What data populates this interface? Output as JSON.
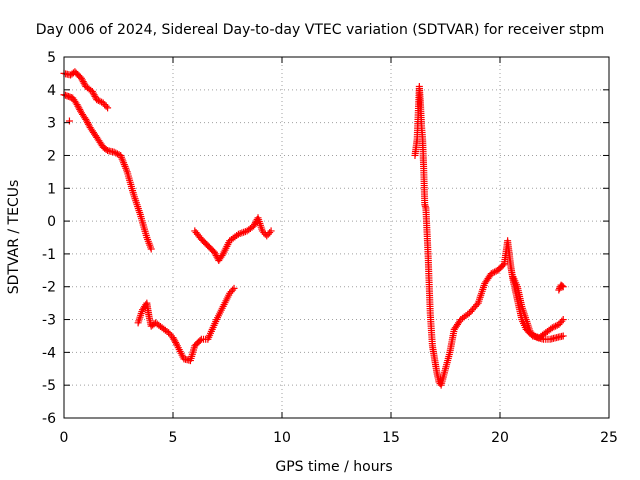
{
  "chart_data": {
    "type": "scatter",
    "title": "Day 006 of 2024, Sidereal Day-to-day VTEC variation (SDTVAR) for receiver stpm",
    "xlabel": "GPS time / hours",
    "ylabel": "SDTVAR / TECUs",
    "xlim": [
      0,
      25
    ],
    "ylim": [
      -6,
      5
    ],
    "xticks": [
      0,
      5,
      10,
      15,
      20,
      25
    ],
    "yticks": [
      -6,
      -5,
      -4,
      -3,
      -2,
      -1,
      0,
      1,
      2,
      3,
      4,
      5
    ],
    "grid": true,
    "marker": "plus",
    "color": "#ff0000",
    "segments": [
      {
        "x": [
          0.0,
          0.3,
          0.5,
          0.8,
          1.0,
          1.3,
          1.5,
          1.8,
          2.0
        ],
        "y": [
          4.5,
          4.45,
          4.55,
          4.35,
          4.1,
          3.95,
          3.7,
          3.6,
          3.45
        ]
      },
      {
        "x": [
          0.0,
          0.2,
          0.4,
          0.6,
          0.8,
          1.0,
          1.2,
          1.5,
          1.8,
          2.0,
          2.3,
          2.6,
          2.9,
          3.2,
          3.5,
          3.8,
          4.0
        ],
        "y": [
          3.85,
          3.8,
          3.75,
          3.55,
          3.3,
          3.1,
          2.85,
          2.55,
          2.25,
          2.15,
          2.1,
          2.0,
          1.5,
          0.8,
          0.2,
          -0.5,
          -0.85
        ]
      },
      {
        "x": [
          0.25
        ],
        "y": [
          3.05
        ]
      },
      {
        "x": [
          3.4,
          3.6,
          3.8,
          3.9,
          4.0,
          4.2,
          4.5,
          4.8,
          5.0,
          5.2,
          5.5,
          5.8,
          6.0,
          6.3,
          6.6,
          7.0,
          7.3,
          7.6,
          7.8
        ],
        "y": [
          -3.1,
          -2.7,
          -2.5,
          -2.9,
          -3.2,
          -3.1,
          -3.25,
          -3.4,
          -3.55,
          -3.8,
          -4.2,
          -4.25,
          -3.8,
          -3.6,
          -3.6,
          -3.0,
          -2.6,
          -2.2,
          -2.05
        ]
      },
      {
        "x": [
          6.0,
          6.3,
          6.6,
          6.9,
          7.1,
          7.3,
          7.6,
          8.0,
          8.4,
          8.7,
          8.9,
          9.1,
          9.3,
          9.5
        ],
        "y": [
          -0.3,
          -0.55,
          -0.75,
          -0.95,
          -1.2,
          -1.0,
          -0.6,
          -0.4,
          -0.3,
          -0.15,
          0.1,
          -0.3,
          -0.45,
          -0.3
        ]
      },
      {
        "x": [
          16.1,
          16.2,
          16.3,
          16.35,
          16.4,
          16.45,
          16.5,
          16.55,
          16.6,
          16.7,
          16.8,
          16.9,
          17.0,
          17.1,
          17.2,
          17.3,
          17.5,
          17.7,
          17.9,
          18.2,
          18.6,
          19.0,
          19.3,
          19.6,
          19.9,
          20.2,
          20.35,
          20.5,
          20.6,
          20.8,
          21.0,
          21.2,
          21.5,
          21.8,
          22.1,
          22.4,
          22.7,
          22.9
        ],
        "y": [
          2.0,
          2.5,
          4.1,
          3.6,
          2.9,
          2.5,
          1.6,
          0.5,
          0.4,
          -1.0,
          -2.8,
          -3.8,
          -4.2,
          -4.6,
          -4.9,
          -5.0,
          -4.5,
          -4.0,
          -3.3,
          -3.0,
          -2.8,
          -2.5,
          -1.9,
          -1.6,
          -1.5,
          -1.3,
          -0.6,
          -1.4,
          -1.8,
          -2.4,
          -3.0,
          -3.3,
          -3.5,
          -3.55,
          -3.4,
          -3.25,
          -3.15,
          -3.0
        ]
      },
      {
        "x": [
          20.6,
          20.8,
          21.0,
          21.2,
          21.4,
          21.7,
          22.0,
          22.3,
          22.6,
          22.9
        ],
        "y": [
          -1.7,
          -2.0,
          -2.6,
          -3.0,
          -3.4,
          -3.55,
          -3.6,
          -3.6,
          -3.55,
          -3.5
        ]
      },
      {
        "x": [
          22.7,
          22.8,
          22.9
        ],
        "y": [
          -2.1,
          -1.95,
          -2.0
        ]
      }
    ]
  }
}
